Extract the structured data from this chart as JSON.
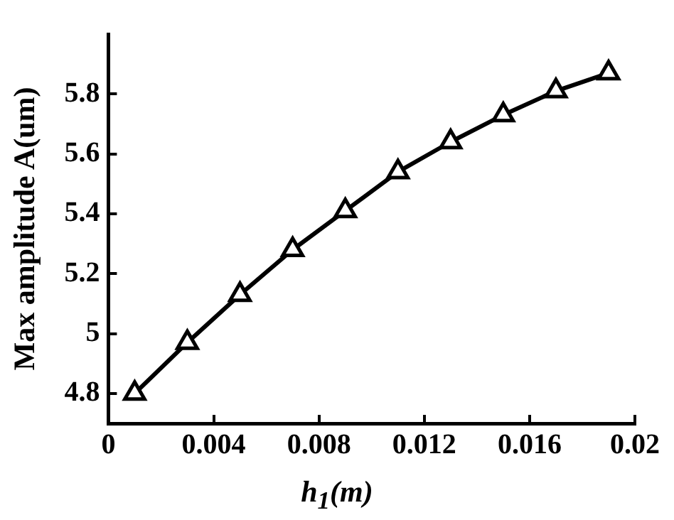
{
  "chart_data": {
    "type": "line",
    "xlabel": "h$_{1}$(m)",
    "ylabel": "Max amplitude A(um)",
    "x": [
      0.001,
      0.003,
      0.005,
      0.007,
      0.009,
      0.011,
      0.013,
      0.015,
      0.017,
      0.019
    ],
    "series": [
      {
        "color": "#000000",
        "values": [
          4.8,
          4.97,
          5.13,
          5.28,
          5.41,
          5.54,
          5.64,
          5.73,
          5.81,
          5.87
        ]
      }
    ],
    "xlim": [
      0,
      0.02
    ],
    "xticks": [
      0,
      0.004,
      0.008,
      0.012,
      0.016,
      0.02
    ],
    "ylim": [
      4.7,
      6.0
    ],
    "yticks": [
      4.8,
      5,
      5.2,
      5.4,
      5.6,
      5.8
    ],
    "grid": false,
    "legend": false,
    "marker": "triangle",
    "line_style": "solid"
  }
}
